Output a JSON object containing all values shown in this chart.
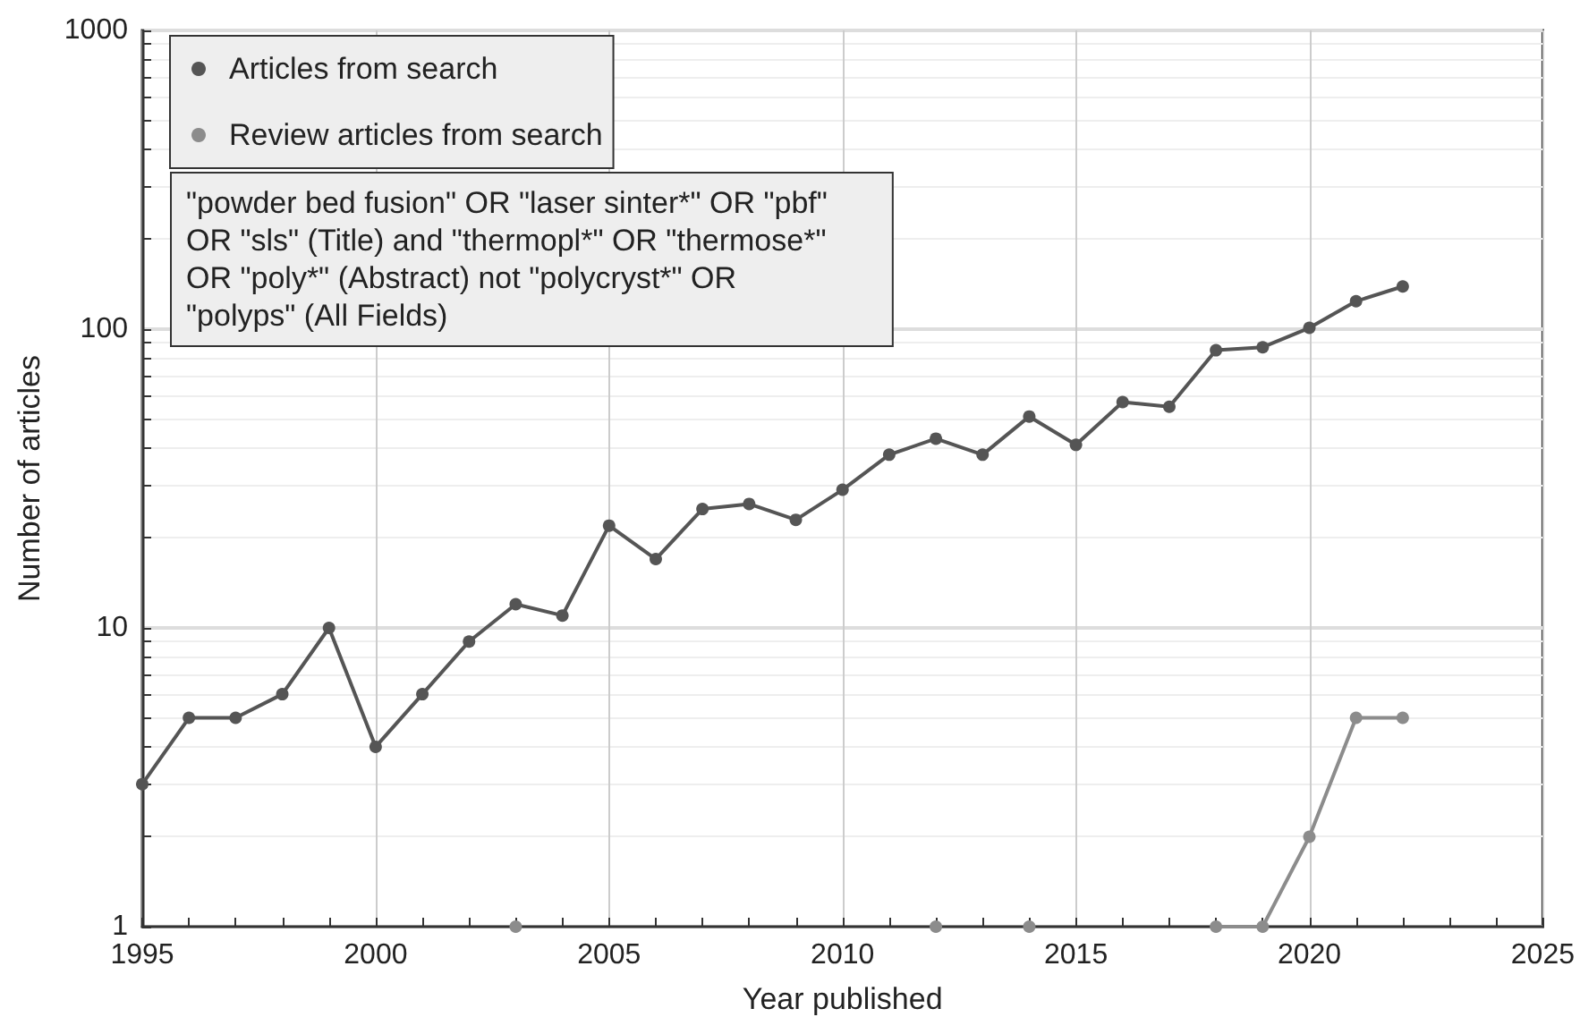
{
  "chart_data": {
    "type": "line",
    "xlabel": "Year published",
    "ylabel": "Number of articles",
    "x": [
      1995,
      1996,
      1997,
      1998,
      1999,
      2000,
      2001,
      2002,
      2003,
      2004,
      2005,
      2006,
      2007,
      2008,
      2009,
      2010,
      2011,
      2012,
      2013,
      2014,
      2015,
      2016,
      2017,
      2018,
      2019,
      2020,
      2021,
      2022
    ],
    "series": [
      {
        "name": "Articles from search",
        "color": "#555555",
        "values": [
          3,
          5,
          5,
          6,
          10,
          4,
          6,
          9,
          12,
          11,
          22,
          17,
          25,
          26,
          23,
          29,
          38,
          43,
          38,
          51,
          41,
          57,
          55,
          85,
          87,
          101,
          124,
          139
        ]
      },
      {
        "name": "Review articles from search",
        "color": "#8c8c8c",
        "values": [
          null,
          null,
          null,
          null,
          null,
          null,
          null,
          null,
          1,
          null,
          null,
          null,
          null,
          null,
          null,
          null,
          null,
          1,
          null,
          1,
          null,
          null,
          null,
          1,
          1,
          2,
          5,
          5
        ]
      }
    ],
    "annotations": [
      "\"powder bed fusion\" OR \"laser sinter*\" OR \"pbf\"\nOR \"sls\" (Title) and \"thermopl*\" OR \"thermose*\"\nOR \"poly*\" (Abstract) not \"polycryst*\" OR\n\"polyps\" (All Fields)"
    ],
    "xlim": [
      1995,
      2025
    ],
    "xticks": [
      1995,
      2000,
      2005,
      2010,
      2015,
      2020,
      2025
    ],
    "ylim": [
      1,
      1000
    ],
    "yticks": [
      1,
      10,
      100,
      1000
    ],
    "log": "y",
    "grid": true,
    "legend": "top left",
    "marker": "circle",
    "line_style": "solid"
  }
}
